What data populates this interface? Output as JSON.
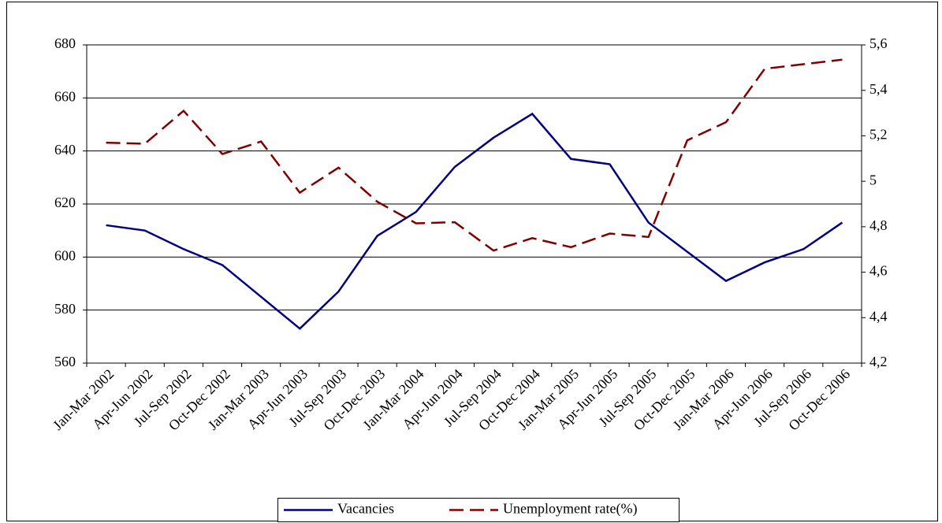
{
  "chart_data": {
    "type": "line",
    "categories": [
      "Jan-Mar 2002",
      "Apr-Jun 2002",
      "Jul-Sep 2002",
      "Oct-Dec 2002",
      "Jan-Mar 2003",
      "Apr-Jun 2003",
      "Jul-Sep 2003",
      "Oct-Dec 2003",
      "Jan-Mar 2004",
      "Apr-Jun 2004",
      "Jul-Sep 2004",
      "Oct-Dec 2004",
      "Jan-Mar 2005",
      "Apr-Jun 2005",
      "Jul-Sep 2005",
      "Oct-Dec 2005",
      "Jan-Mar 2006",
      "Apr-Jun 2006",
      "Jul-Sep 2006",
      "Oct-Dec 2006"
    ],
    "series": [
      {
        "name": "Vacancies",
        "color": "#000080",
        "dashed": false,
        "values": [
          612,
          610,
          603,
          597,
          585,
          573,
          587,
          608,
          617,
          634,
          645,
          654,
          637,
          635,
          613,
          602,
          591,
          598,
          603,
          613
        ]
      },
      {
        "name": "Unemployment rate(%)",
        "color": "#800000",
        "dashed": true,
        "axis": "y2",
        "values": [
          5.17,
          5.165,
          5.31,
          5.12,
          5.175,
          4.95,
          5.06,
          4.91,
          4.815,
          4.82,
          4.695,
          4.75,
          4.71,
          4.77,
          4.755,
          5.18,
          5.26,
          5.495,
          5.515,
          5.535
        ]
      }
    ],
    "ylim": [
      560,
      680
    ],
    "yticks": [
      560,
      580,
      600,
      620,
      640,
      660,
      680
    ],
    "y2lim": [
      4.2,
      5.6
    ],
    "y2ticks": [
      {
        "value": 4.2,
        "label": "4,2"
      },
      {
        "value": 4.4,
        "label": "4,4"
      },
      {
        "value": 4.6,
        "label": "4,6"
      },
      {
        "value": 4.8,
        "label": "4,8"
      },
      5,
      {
        "value": 5.2,
        "label": "5,2"
      },
      {
        "value": 5.4,
        "label": "5,4"
      },
      {
        "value": 5.6,
        "label": "5,6"
      }
    ],
    "grid": true,
    "legend": "bottom"
  }
}
